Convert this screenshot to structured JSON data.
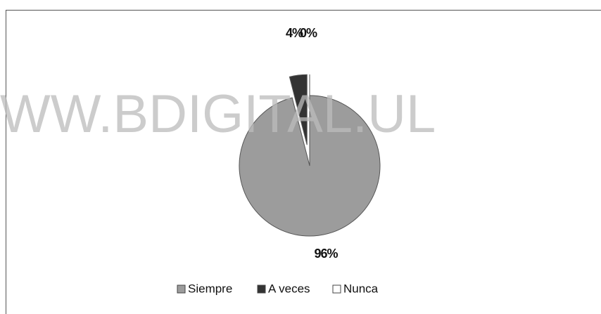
{
  "chart_data": {
    "type": "pie",
    "categories": [
      "Siempre",
      "A veces",
      "Nunca"
    ],
    "values": [
      96,
      4,
      0
    ],
    "value_labels": [
      "96%",
      "4%",
      "0%"
    ],
    "colors": [
      "#9c9c9c",
      "#333333",
      "#ffffff"
    ],
    "legend": "bottom",
    "watermark": "WW.BDIGITAL.UL"
  }
}
